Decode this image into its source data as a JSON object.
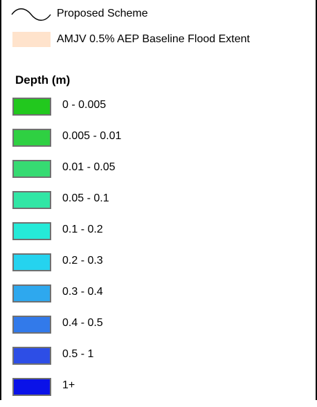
{
  "legend": {
    "proposed_scheme_label": "Proposed Scheme",
    "baseline_flood_label": "AMJV 0.5% AEP Baseline Flood Extent",
    "baseline_flood_color": "#ffe3cc",
    "depth_title": "Depth (m)",
    "depth_classes": [
      {
        "label": "0 - 0.005",
        "color": "#22c81e"
      },
      {
        "label": "0.005 - 0.01",
        "color": "#2fd042"
      },
      {
        "label": "0.01 - 0.05",
        "color": "#36db72"
      },
      {
        "label": "0.05 - 0.1",
        "color": "#31e6a5"
      },
      {
        "label": "0.1 - 0.2",
        "color": "#25ead8"
      },
      {
        "label": "0.2 - 0.3",
        "color": "#25d3ef"
      },
      {
        "label": "0.3 - 0.4",
        "color": "#2ea8ee"
      },
      {
        "label": "0.4 - 0.5",
        "color": "#327aea"
      },
      {
        "label": "0.5 - 1",
        "color": "#2d4ee6"
      },
      {
        "label": "1+",
        "color": "#0a12e8"
      }
    ]
  }
}
